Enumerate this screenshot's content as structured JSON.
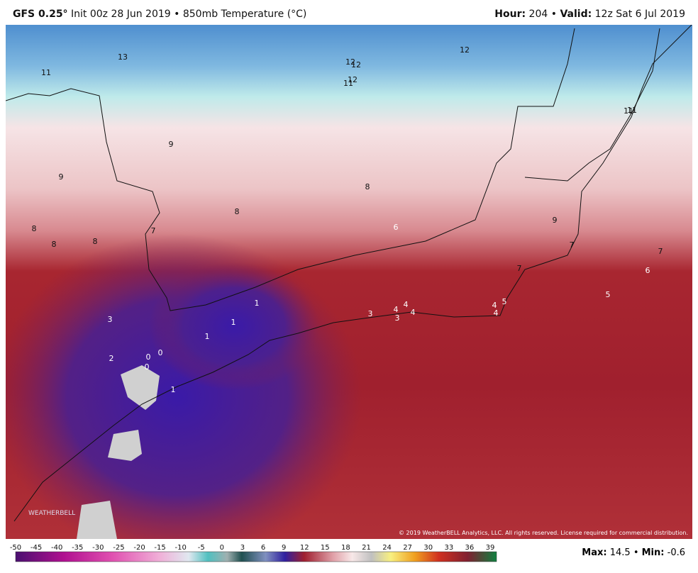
{
  "header": {
    "model": "GFS 0.25°",
    "init": "Init 00z 28 Jun 2019",
    "separator": "•",
    "field": "850mb Temperature (°C)",
    "hour_label": "Hour:",
    "hour": "204",
    "valid_label": "Valid:",
    "valid": "12z Sat 6 Jul 2019"
  },
  "map": {
    "contour_labels": [
      13,
      11,
      12,
      12,
      12,
      11,
      12,
      11,
      11,
      9,
      9,
      8,
      8,
      8,
      8,
      8,
      7,
      6,
      9,
      7,
      7,
      7,
      6,
      5,
      5,
      4,
      4,
      4,
      4,
      4,
      3,
      3,
      3,
      1,
      1,
      1,
      2,
      0,
      0,
      0,
      1
    ],
    "logo": "WEATHERBELL",
    "copyright": "© 2019 WeatherBELL Analytics, LLC. All rights reserved. License required for commercial distribution."
  },
  "colorbar": {
    "ticks": [
      -50,
      -45,
      -40,
      -35,
      -30,
      -25,
      -20,
      -15,
      -10,
      -5,
      0,
      3,
      6,
      9,
      12,
      15,
      18,
      21,
      24,
      27,
      30,
      33,
      36,
      39
    ]
  },
  "footer": {
    "max_label": "Max:",
    "max": 14.5,
    "separator": "•",
    "min_label": "Min:",
    "min": -0.6
  }
}
